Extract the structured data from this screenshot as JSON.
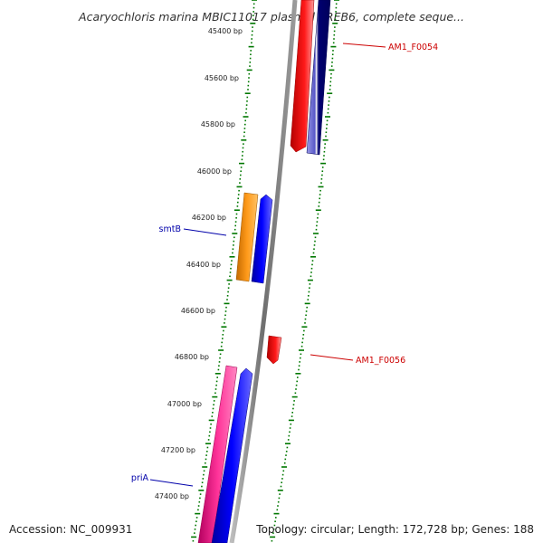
{
  "title": "Acaryochloris marina MBIC11017 plasmid pREB6, complete seque...",
  "accession": "Accession: NC_009931",
  "summary": "Topology: circular; Length: 172,728 bp; Genes: 188",
  "ticks": [
    "45400 bp",
    "45600 bp",
    "45800 bp",
    "46000 bp",
    "46200 bp",
    "46400 bp",
    "46600 bp",
    "46800 bp",
    "47000 bp",
    "47200 bp",
    "47400 bp"
  ],
  "genes": [
    {
      "name": "AM1_F0054",
      "color": "#cc0000"
    },
    {
      "name": "smtB",
      "color": "#0000aa"
    },
    {
      "name": "AM1_F0056",
      "color": "#cc0000"
    },
    {
      "name": "priA",
      "color": "#0000aa"
    }
  ],
  "colors": {
    "backbone": "#888888",
    "ruler": "#007700",
    "red_feature": "#ff0000",
    "navy_feature": "#000088",
    "orange_feature": "#ff9900",
    "blue_feature": "#0000ff",
    "pink_feature": "#ff3399"
  }
}
